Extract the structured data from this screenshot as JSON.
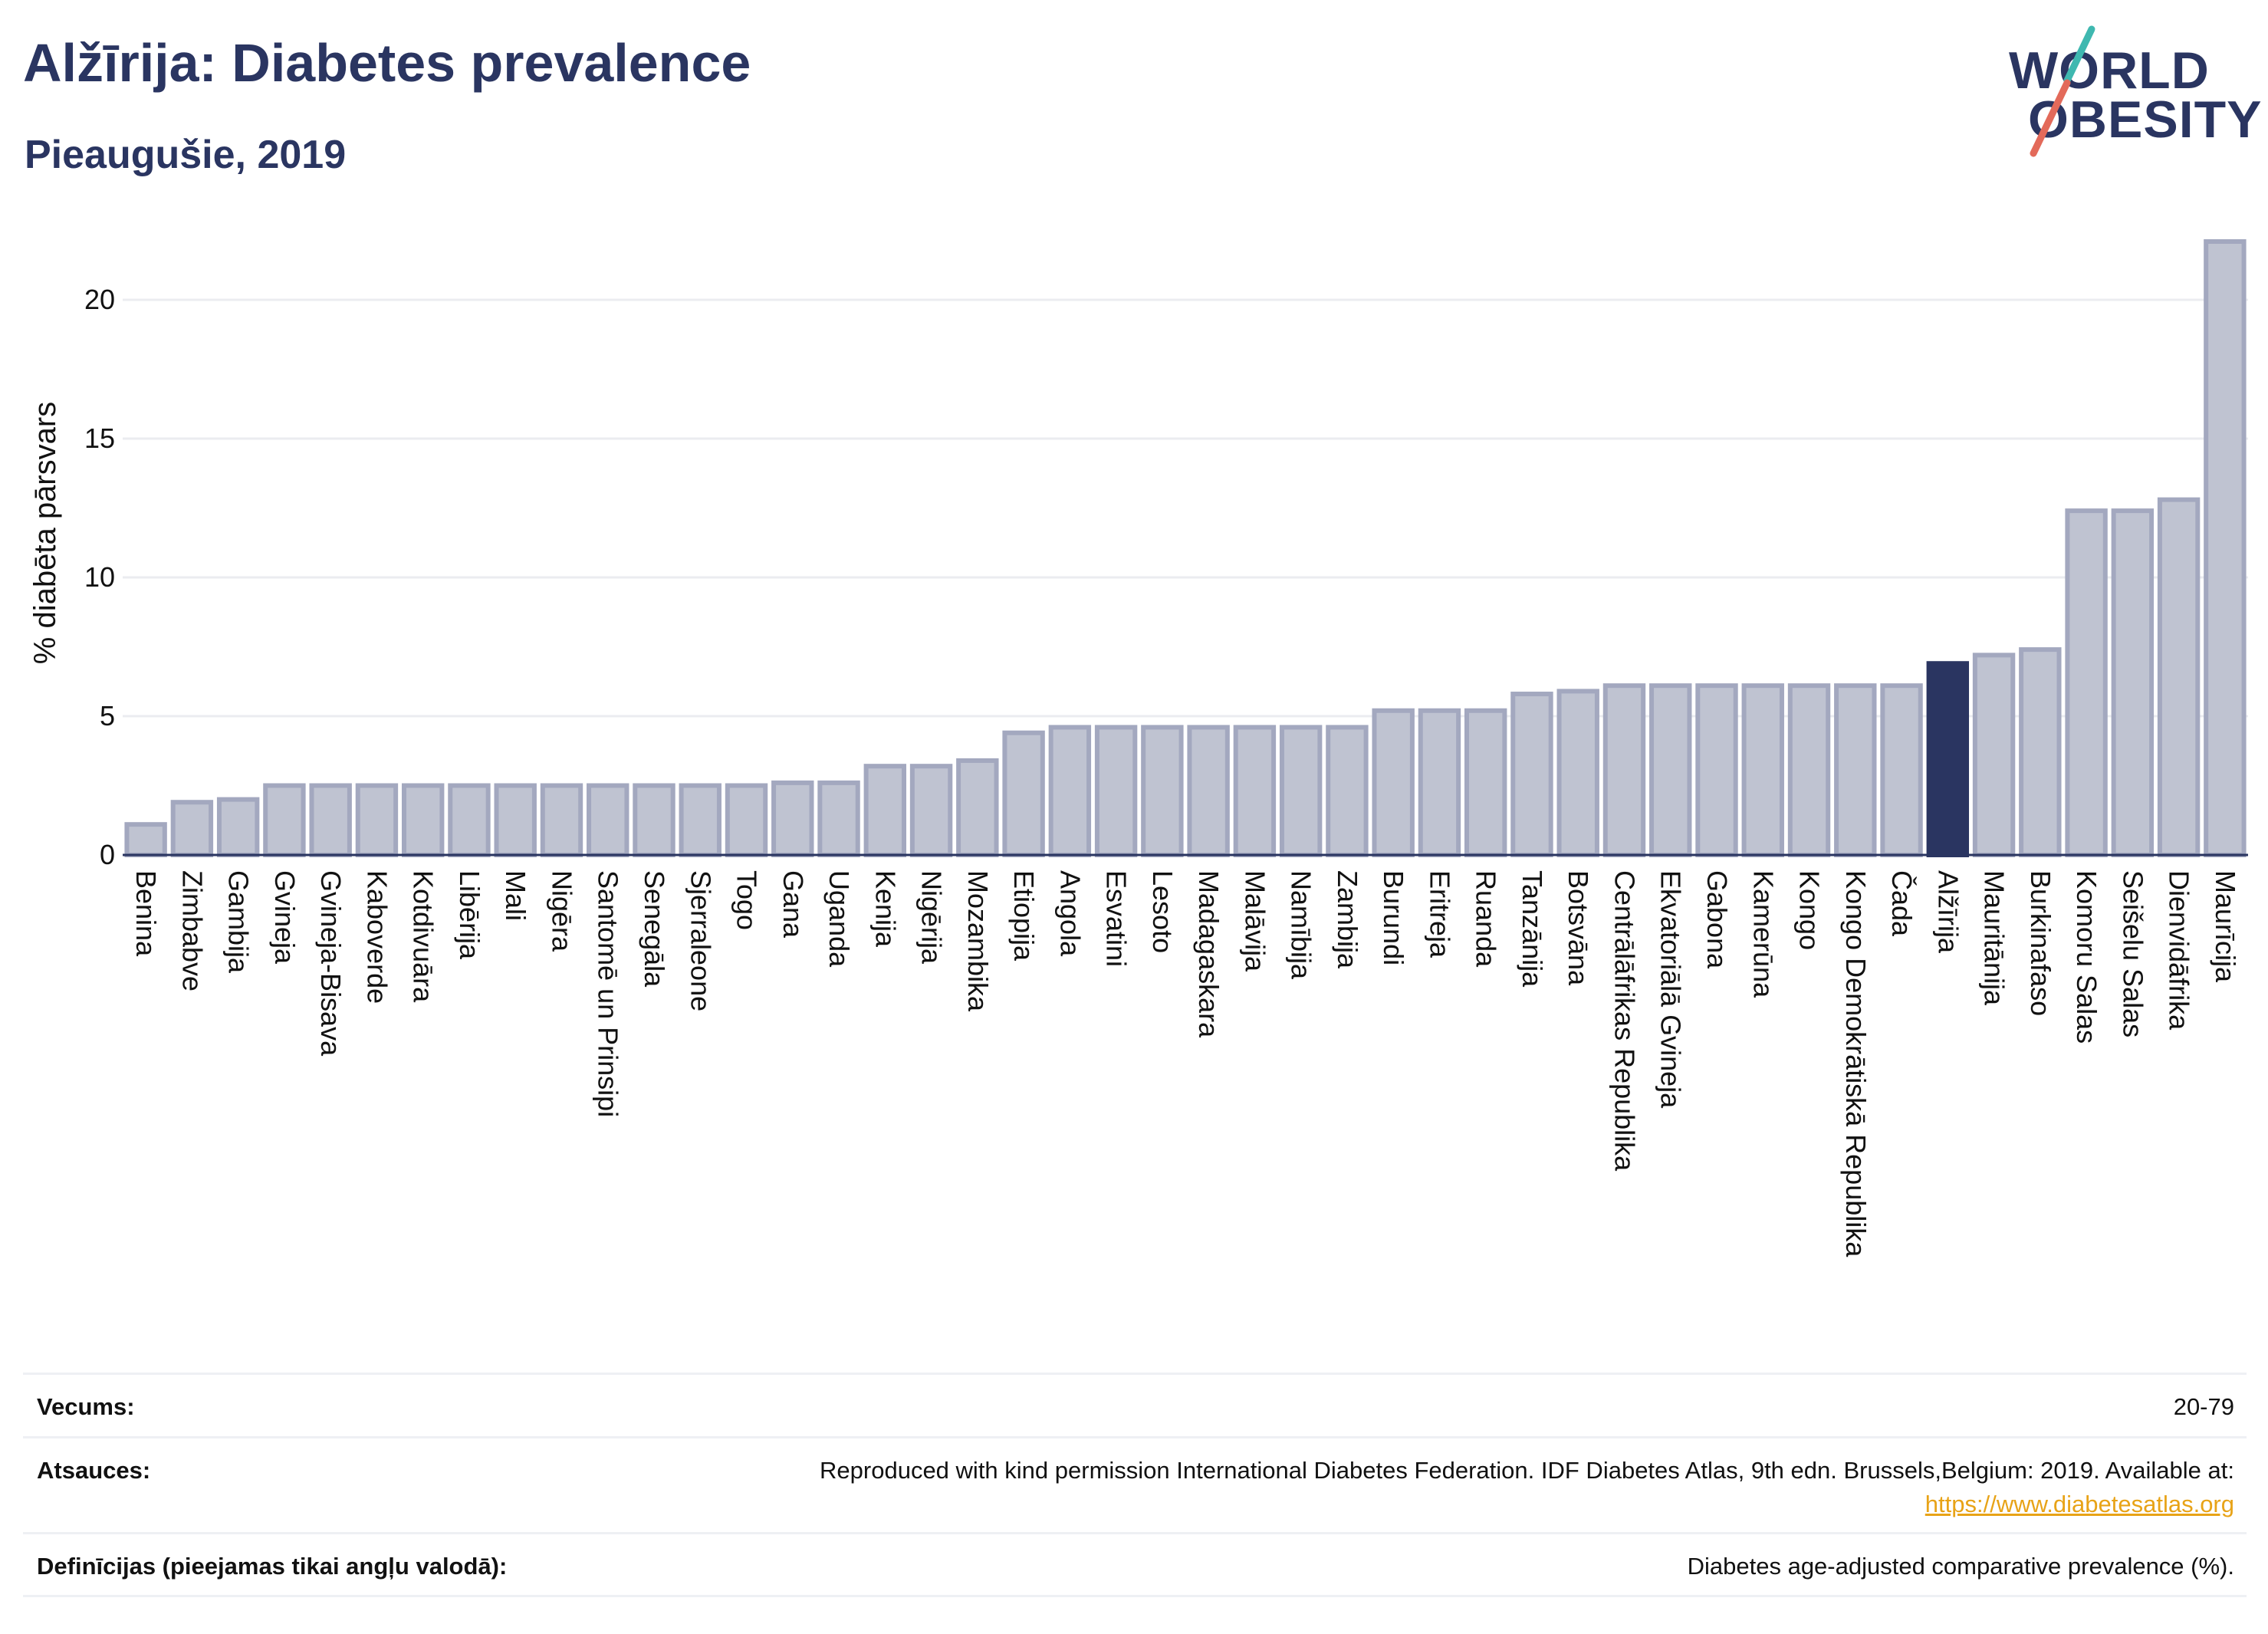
{
  "header": {
    "title": "Alžīrija: Diabetes prevalence",
    "subtitle": "Pieaugušie, 2019"
  },
  "logo": {
    "line1": "WORLD",
    "line2": "OBESITY"
  },
  "chart_data": {
    "type": "bar",
    "ylabel": "% diabēta pārsvars",
    "ylim": [
      0,
      22
    ],
    "yticks": [
      0,
      5,
      10,
      15,
      20
    ],
    "grid": true,
    "highlight": "Alžīrija",
    "colors": {
      "bar_fill": "#bfc3d1",
      "bar_stroke": "#a3a8bf",
      "highlight_fill": "#2a3561",
      "grid": "#ebecf0",
      "axis": "#2a3561"
    },
    "categories": [
      "Benina",
      "Zimbabve",
      "Gambija",
      "Gvineja",
      "Gvineja-Bisava",
      "Kaboverde",
      "Kotdivuāra",
      "Libērija",
      "Mali",
      "Nigēra",
      "Santomē un Prinsipi",
      "Senegāla",
      "Sjerraleone",
      "Togo",
      "Gana",
      "Uganda",
      "Kenija",
      "Nigērija",
      "Mozambika",
      "Etiopija",
      "Angola",
      "Esvatini",
      "Lesoto",
      "Madagaskara",
      "Malāvija",
      "Namībija",
      "Zambija",
      "Burundi",
      "Eritreja",
      "Ruanda",
      "Tanzānija",
      "Botsvāna",
      "Centrālāfrikas Republika",
      "Ekvatoriālā Gvineja",
      "Gabona",
      "Kamerūna",
      "Kongo",
      "Kongo Demokrātiskā Republika",
      "Čada",
      "Alžīrija",
      "Mauritānija",
      "Burkinafaso",
      "Komoru Salas",
      "Seišelu Salas",
      "Dienvidāfrika",
      "Maurīcija"
    ],
    "values": [
      1.1,
      1.9,
      2.0,
      2.5,
      2.5,
      2.5,
      2.5,
      2.5,
      2.5,
      2.5,
      2.5,
      2.5,
      2.5,
      2.5,
      2.6,
      2.6,
      3.2,
      3.2,
      3.4,
      4.4,
      4.6,
      4.6,
      4.6,
      4.6,
      4.6,
      4.6,
      4.6,
      5.2,
      5.2,
      5.2,
      5.8,
      5.9,
      6.1,
      6.1,
      6.1,
      6.1,
      6.1,
      6.1,
      6.1,
      6.9,
      7.2,
      7.4,
      12.4,
      12.4,
      12.8,
      22.1
    ]
  },
  "footer": {
    "age_label": "Vecums:",
    "age_value": "20-79",
    "sources_label": "Atsauces:",
    "sources_text": "Reproduced with kind permission International Diabetes Federation. IDF Diabetes Atlas, 9th edn. Brussels,Belgium: 2019. Available at:",
    "sources_link": "https://www.diabetesatlas.org",
    "definitions_label": "Definīcijas (pieejamas tikai angļu valodā):",
    "definitions_value": "Diabetes age-adjusted comparative prevalence (%)."
  }
}
